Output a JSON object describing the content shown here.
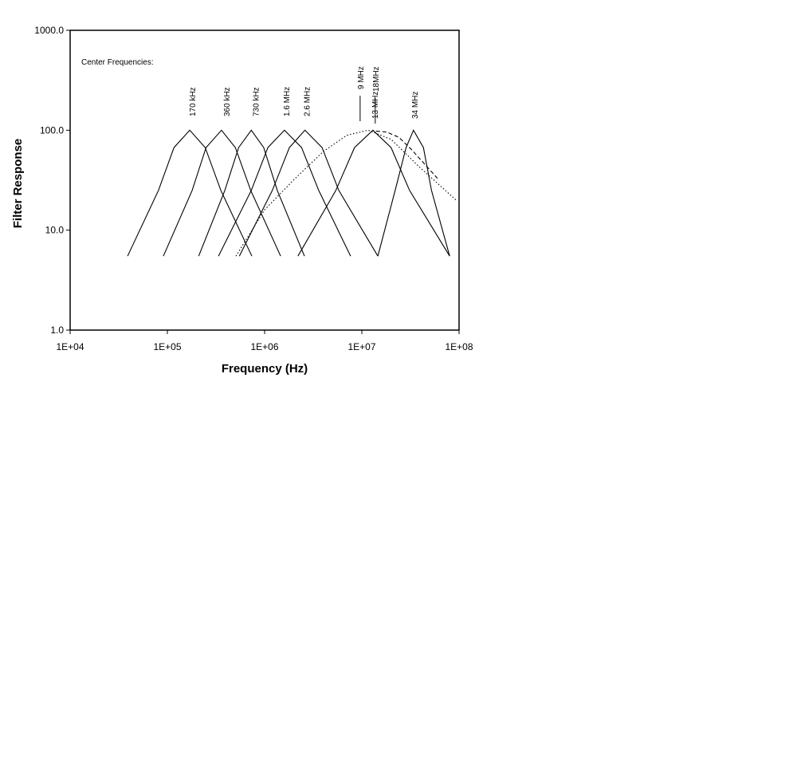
{
  "chart_data": {
    "type": "line",
    "log_x": true,
    "log_y": true,
    "ylabel": "Filter Response",
    "xlabel": "Frequency (Hz)",
    "annotation": "Center Frequencies:",
    "xlim": [
      10000,
      100000000
    ],
    "ylim": [
      1,
      1000
    ],
    "xticks": [
      {
        "value": 10000,
        "label": "1E+04"
      },
      {
        "value": 100000,
        "label": "1E+05"
      },
      {
        "value": 1000000,
        "label": "1E+06"
      },
      {
        "value": 10000000,
        "label": "1E+07"
      },
      {
        "value": 100000000,
        "label": "1E+08"
      }
    ],
    "yticks": [
      {
        "value": 1,
        "label": "1.0"
      },
      {
        "value": 10,
        "label": "10.0"
      },
      {
        "value": 100,
        "label": "100.0"
      },
      {
        "value": 1000,
        "label": "1000.0"
      }
    ],
    "series": [
      {
        "name": "170 kHz",
        "color": "#000000",
        "dash": "solid",
        "x": [
          39000,
          81000,
          117000,
          170000,
          245000,
          355000,
          740000
        ],
        "values": [
          5.5,
          25,
          67,
          100,
          67,
          25,
          5.5
        ]
      },
      {
        "name": "360 kHz",
        "color": "#000000",
        "dash": "solid",
        "x": [
          91000,
          180000,
          250000,
          360000,
          500000,
          720000,
          1460000
        ],
        "values": [
          5.5,
          25,
          67,
          100,
          67,
          25,
          5.5
        ]
      },
      {
        "name": "730 kHz",
        "color": "#000000",
        "dash": "solid",
        "x": [
          210000,
          390000,
          540000,
          730000,
          980000,
          1350000,
          2570000
        ],
        "values": [
          5.5,
          25,
          67,
          100,
          67,
          25,
          5.5
        ]
      },
      {
        "name": "1.6 MHz",
        "color": "#000000",
        "dash": "solid",
        "x": [
          335000,
          730000,
          1080000,
          1600000,
          2400000,
          3600000,
          7670000
        ],
        "values": [
          5.5,
          25,
          67,
          100,
          67,
          25,
          5.5
        ]
      },
      {
        "name": "2.6 MHz",
        "color": "#000000",
        "dash": "solid",
        "x": [
          550000,
          1200000,
          1800000,
          2600000,
          3900000,
          5800000,
          14600000
        ],
        "values": [
          5.5,
          25,
          67,
          100,
          67,
          25,
          5.5
        ]
      },
      {
        "name": "9 MHz",
        "color": "#000000",
        "dash": "dotted",
        "x": [
          507000,
          1000000,
          2000000,
          4000000,
          7000000,
          11600000,
          20000000,
          40000000,
          93000000
        ],
        "values": [
          5.5,
          16,
          32,
          61,
          89,
          100,
          81,
          42,
          20
        ]
      },
      {
        "name": "13 MHz",
        "color": "#000000",
        "dash": "solid",
        "x": [
          2200000,
          5400000,
          8400000,
          13000000,
          20000000,
          31000000,
          80000000
        ],
        "values": [
          5.5,
          25,
          67,
          100,
          67,
          25,
          5.5
        ]
      },
      {
        "name": "18MHz",
        "color": "#000000",
        "dash": "dashed",
        "x": [
          14000000,
          18000000,
          24000000,
          32000000,
          45000000,
          60000000
        ],
        "values": [
          98,
          96,
          85,
          65,
          45,
          33
        ]
      },
      {
        "name": "34 MHz",
        "color": "#000000",
        "dash": "solid",
        "x": [
          14600000,
          22000000,
          28500000,
          34000000,
          43000000,
          52000000,
          80000000
        ],
        "values": [
          5.5,
          25,
          67,
          100,
          67,
          25,
          5.5
        ]
      }
    ]
  }
}
